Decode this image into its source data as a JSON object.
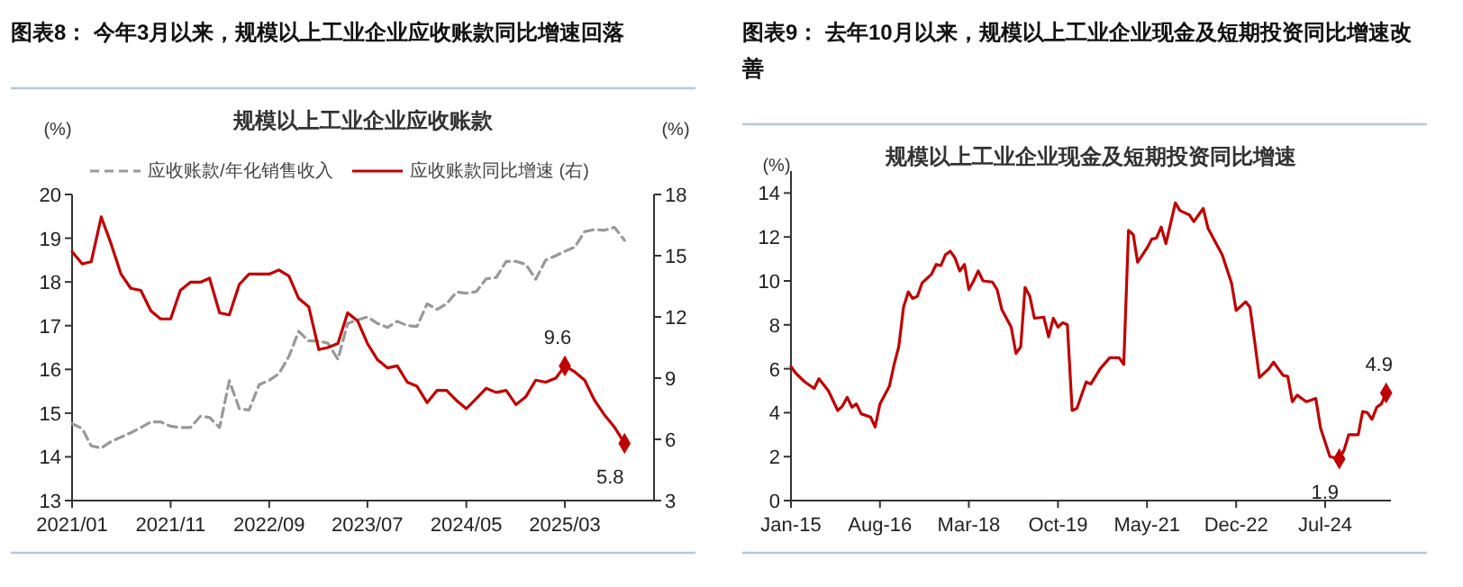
{
  "chart_data": [
    {
      "type": "line",
      "title": "图表8： 今年3月以来，规模以上工业企业应收账款同比增速回落",
      "subtitle": "规模以上工业企业应收账款",
      "ylabel": "(%)",
      "y2label": "(%)",
      "x": [
        "2021-01",
        "2021-02",
        "2021-03",
        "2021-04",
        "2021-05",
        "2021-06",
        "2021-07",
        "2021-08",
        "2021-09",
        "2021-10",
        "2021-11",
        "2021-12",
        "2022-01",
        "2022-02",
        "2022-03",
        "2022-04",
        "2022-05",
        "2022-06",
        "2022-07",
        "2022-08",
        "2022-09",
        "2022-10",
        "2022-11",
        "2022-12",
        "2023-01",
        "2023-02",
        "2023-03",
        "2023-04",
        "2023-05",
        "2023-06",
        "2023-07",
        "2023-08",
        "2023-09",
        "2023-10",
        "2023-11",
        "2023-12",
        "2024-01",
        "2024-02",
        "2024-03",
        "2024-04",
        "2024-05",
        "2024-06",
        "2024-07",
        "2024-08",
        "2024-09",
        "2024-10",
        "2024-11",
        "2024-12",
        "2025-01",
        "2025-02",
        "2025-03",
        "2025-04",
        "2025-05",
        "2025-06",
        "2025-07",
        "2025-08",
        "2025-09"
      ],
      "series": [
        {
          "name": "应收账款/年化销售收入",
          "color": "#999999",
          "line_style": "dashed",
          "values": [
            14.76,
            14.65,
            14.25,
            14.2,
            14.35,
            14.45,
            14.55,
            14.67,
            14.8,
            14.8,
            14.7,
            14.67,
            14.67,
            14.93,
            14.9,
            14.67,
            15.74,
            15.1,
            15.07,
            15.65,
            15.75,
            15.9,
            16.3,
            16.87,
            16.65,
            16.65,
            16.6,
            16.23,
            17.05,
            17.13,
            17.2,
            17.05,
            16.96,
            17.1,
            17.0,
            16.98,
            17.5,
            17.37,
            17.5,
            17.77,
            17.74,
            17.78,
            18.07,
            18.1,
            18.47,
            18.47,
            18.4,
            18.06,
            18.5,
            18.6,
            18.7,
            18.8,
            19.15,
            19.2,
            19.18,
            19.25,
            18.95
          ]
        },
        {
          "name": "应收账款同比增速 (右)",
          "color": "#c00000",
          "line_style": "solid",
          "axis": "y2",
          "values": [
            15.2,
            14.6,
            14.7,
            16.9,
            15.6,
            14.1,
            13.4,
            13.3,
            12.3,
            11.9,
            11.9,
            13.3,
            13.7,
            13.7,
            13.9,
            12.2,
            12.1,
            13.6,
            14.1,
            14.1,
            14.1,
            14.3,
            14.0,
            12.9,
            12.5,
            10.4,
            10.5,
            10.7,
            12.2,
            11.8,
            10.7,
            9.9,
            9.5,
            9.6,
            8.8,
            8.6,
            7.8,
            8.4,
            8.4,
            7.9,
            7.5,
            8.0,
            8.5,
            8.3,
            8.4,
            7.7,
            8.1,
            8.9,
            8.8,
            9.0,
            9.6,
            9.3,
            8.9,
            7.9,
            7.2,
            6.6,
            5.8
          ]
        },
        {
          "type": "scatter",
          "marker": "diamond",
          "color": "#c00000",
          "axis": "y2",
          "x": [
            "2025-03",
            "2025-09"
          ],
          "values": [
            9.6,
            5.8
          ],
          "value_labels": [
            "9.6",
            "5.8"
          ]
        }
      ],
      "xlim": [
        "2021-01",
        "2025-12"
      ],
      "xticks": [
        {
          "value": "2021-01",
          "label": "2021/01"
        },
        {
          "value": "2021-11",
          "label": "2021/11"
        },
        {
          "value": "2022-09",
          "label": "2022/09"
        },
        {
          "value": "2023-07",
          "label": "2023/07"
        },
        {
          "value": "2024-05",
          "label": "2024/05"
        },
        {
          "value": "2025-03",
          "label": "2025/03"
        }
      ],
      "ylim": [
        13,
        20
      ],
      "yticks": [
        13,
        14,
        15,
        16,
        17,
        18,
        19,
        20
      ],
      "y2lim": [
        3,
        18
      ],
      "y2ticks": [
        3,
        6,
        9,
        12,
        15,
        18
      ],
      "legend": "top",
      "grid": false
    },
    {
      "type": "line",
      "title": "图表9： 去年10月以来，规模以上工业企业现金及短期投资同比增速改善",
      "subtitle": "规模以上工业企业现金及短期投资同比增速",
      "ylabel": "(%)",
      "x": [
        "2015-01",
        "2015-02",
        "2015-04",
        "2015-06",
        "2015-07",
        "2015-09",
        "2015-11",
        "2015-12",
        "2016-01",
        "2016-02",
        "2016-03",
        "2016-04",
        "2016-06",
        "2016-07",
        "2016-08",
        "2016-10",
        "2016-11",
        "2016-12",
        "2017-01",
        "2017-02",
        "2017-03",
        "2017-04",
        "2017-05",
        "2017-07",
        "2017-08",
        "2017-09",
        "2017-10",
        "2017-11",
        "2017-12",
        "2018-01",
        "2018-02",
        "2018-03",
        "2018-04",
        "2018-05",
        "2018-06",
        "2018-08",
        "2018-09",
        "2018-10",
        "2018-12",
        "2019-01",
        "2019-02",
        "2019-03",
        "2019-04",
        "2019-05",
        "2019-07",
        "2019-08",
        "2019-09",
        "2019-10",
        "2019-11",
        "2019-12",
        "2020-01",
        "2020-02",
        "2020-04",
        "2020-05",
        "2020-07",
        "2020-09",
        "2020-11",
        "2020-12",
        "2021-01",
        "2021-02",
        "2021-03",
        "2021-05",
        "2021-06",
        "2021-07",
        "2021-08",
        "2021-09",
        "2021-11",
        "2021-12",
        "2022-02",
        "2022-03",
        "2022-04",
        "2022-05",
        "2022-06",
        "2022-08",
        "2022-09",
        "2022-11",
        "2022-12",
        "2023-02",
        "2023-03",
        "2023-04",
        "2023-05",
        "2023-07",
        "2023-08",
        "2023-10",
        "2023-11",
        "2023-12",
        "2024-01",
        "2024-03",
        "2024-05",
        "2024-06",
        "2024-08",
        "2024-10",
        "2024-11",
        "2024-12",
        "2025-02",
        "2025-03",
        "2025-04",
        "2025-05",
        "2025-06",
        "2025-07",
        "2025-08"
      ],
      "series": [
        {
          "color": "#c00000",
          "line_style": "solid",
          "values": [
            6.1,
            5.8,
            5.4,
            5.1,
            5.55,
            5.0,
            4.1,
            4.3,
            4.7,
            4.25,
            4.4,
            3.95,
            3.8,
            3.35,
            4.4,
            5.2,
            6.2,
            7.0,
            8.8,
            9.5,
            9.2,
            9.3,
            9.9,
            10.3,
            10.75,
            10.7,
            11.2,
            11.35,
            11.05,
            10.45,
            10.75,
            9.6,
            10.0,
            10.45,
            10.0,
            9.95,
            9.6,
            8.7,
            7.9,
            6.7,
            7.0,
            9.7,
            9.3,
            8.3,
            8.35,
            7.45,
            8.3,
            7.9,
            8.1,
            8.0,
            4.1,
            4.2,
            5.4,
            5.3,
            6.0,
            6.5,
            6.5,
            6.2,
            12.3,
            12.1,
            10.85,
            11.5,
            11.9,
            11.95,
            12.45,
            11.7,
            13.55,
            13.2,
            13.0,
            12.7,
            13.0,
            13.3,
            12.4,
            11.6,
            11.2,
            9.9,
            8.65,
            9.05,
            8.8,
            7.2,
            5.6,
            6.0,
            6.3,
            5.7,
            5.65,
            4.5,
            4.8,
            4.5,
            4.65,
            3.3,
            2.0,
            1.9,
            2.3,
            3.0,
            3.0,
            4.05,
            4.0,
            3.7,
            4.25,
            4.4,
            4.9
          ]
        },
        {
          "type": "scatter",
          "marker": "diamond",
          "color": "#c00000",
          "x": [
            "2024-10",
            "2025-08"
          ],
          "values": [
            1.9,
            4.9
          ],
          "value_labels": [
            "1.9",
            "4.9"
          ]
        }
      ],
      "xlim": [
        "2015-01",
        "2025-09"
      ],
      "xticks": [
        {
          "value": "2015-01",
          "label": "Jan-15"
        },
        {
          "value": "2016-08",
          "label": "Aug-16"
        },
        {
          "value": "2018-03",
          "label": "Mar-18"
        },
        {
          "value": "2019-10",
          "label": "Oct-19"
        },
        {
          "value": "2021-05",
          "label": "May-21"
        },
        {
          "value": "2022-12",
          "label": "Dec-22"
        },
        {
          "value": "2024-07",
          "label": "Jul-24"
        }
      ],
      "ylim": [
        0,
        15
      ],
      "yticks": [
        0,
        2,
        4,
        6,
        8,
        10,
        12,
        14
      ],
      "legend": false,
      "grid": false
    }
  ]
}
